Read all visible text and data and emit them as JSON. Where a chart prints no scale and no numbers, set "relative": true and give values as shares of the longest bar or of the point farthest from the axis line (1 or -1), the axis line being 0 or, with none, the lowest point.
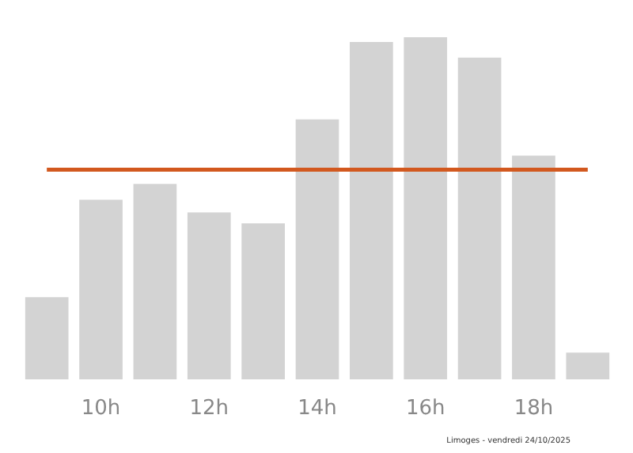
{
  "chart_data": {
    "type": "bar",
    "relative": true,
    "categories": [
      null,
      "10h",
      null,
      "12h",
      null,
      "14h",
      null,
      "16h",
      null,
      "18h",
      null
    ],
    "values": [
      0.24,
      0.525,
      0.571,
      0.488,
      0.456,
      0.76,
      0.986,
      1,
      0.94,
      0.654,
      0.078
    ],
    "color": "#d3d3d3",
    "ref_lines": [
      {
        "axis": "y",
        "value": 0.613,
        "color": "#d2581e"
      }
    ],
    "annotations": [
      "Limoges - vendredi 24/10/2025"
    ]
  }
}
